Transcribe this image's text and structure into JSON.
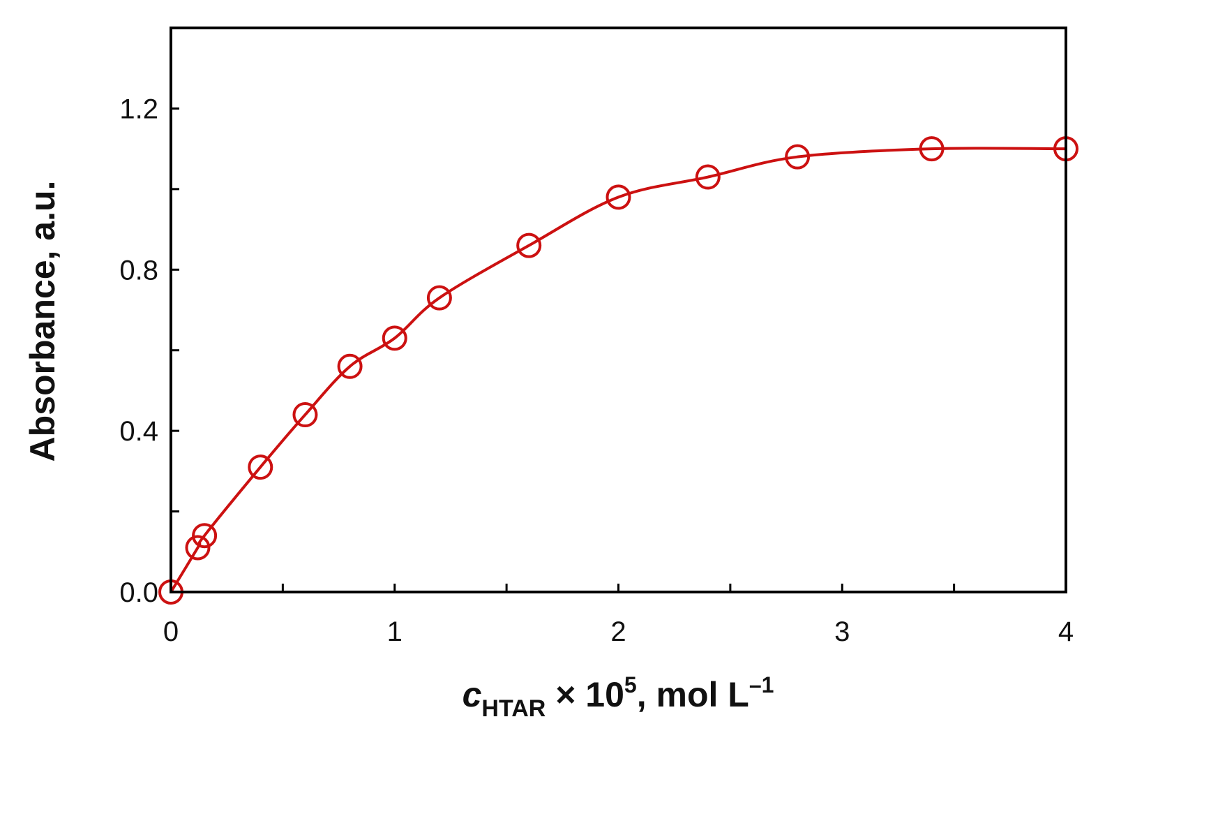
{
  "chart_data": {
    "type": "line",
    "title": "",
    "xlabel": {
      "var": "c",
      "sub": "HTAR",
      "mid": " × 10",
      "sup": "5",
      "unit": ", mol L",
      "unit_sup": "–1"
    },
    "ylabel": "Absorbance, a.u.",
    "xlim": [
      0,
      4
    ],
    "ylim": [
      0,
      1.4
    ],
    "x_ticks": [
      0,
      1,
      2,
      3,
      4
    ],
    "x_tick_labels": [
      "0",
      "1",
      "2",
      "3",
      "4"
    ],
    "x_minor_step": 0.5,
    "y_ticks": [
      0,
      0.4,
      0.8,
      1.2
    ],
    "y_tick_labels": [
      "0.0",
      "0.4",
      "0.8",
      "1.2"
    ],
    "y_minor_step": 0.2,
    "grid": false,
    "series": [
      {
        "name": "Absorbance",
        "color": "#cc1111",
        "marker": "open-circle",
        "x": [
          0,
          0.12,
          0.15,
          0.4,
          0.6,
          0.8,
          1.0,
          1.2,
          1.6,
          2.0,
          2.4,
          2.8,
          3.4,
          4.0
        ],
        "y": [
          0.0,
          0.11,
          0.14,
          0.31,
          0.44,
          0.56,
          0.63,
          0.73,
          0.86,
          0.98,
          1.03,
          1.08,
          1.1,
          1.1
        ]
      }
    ]
  }
}
